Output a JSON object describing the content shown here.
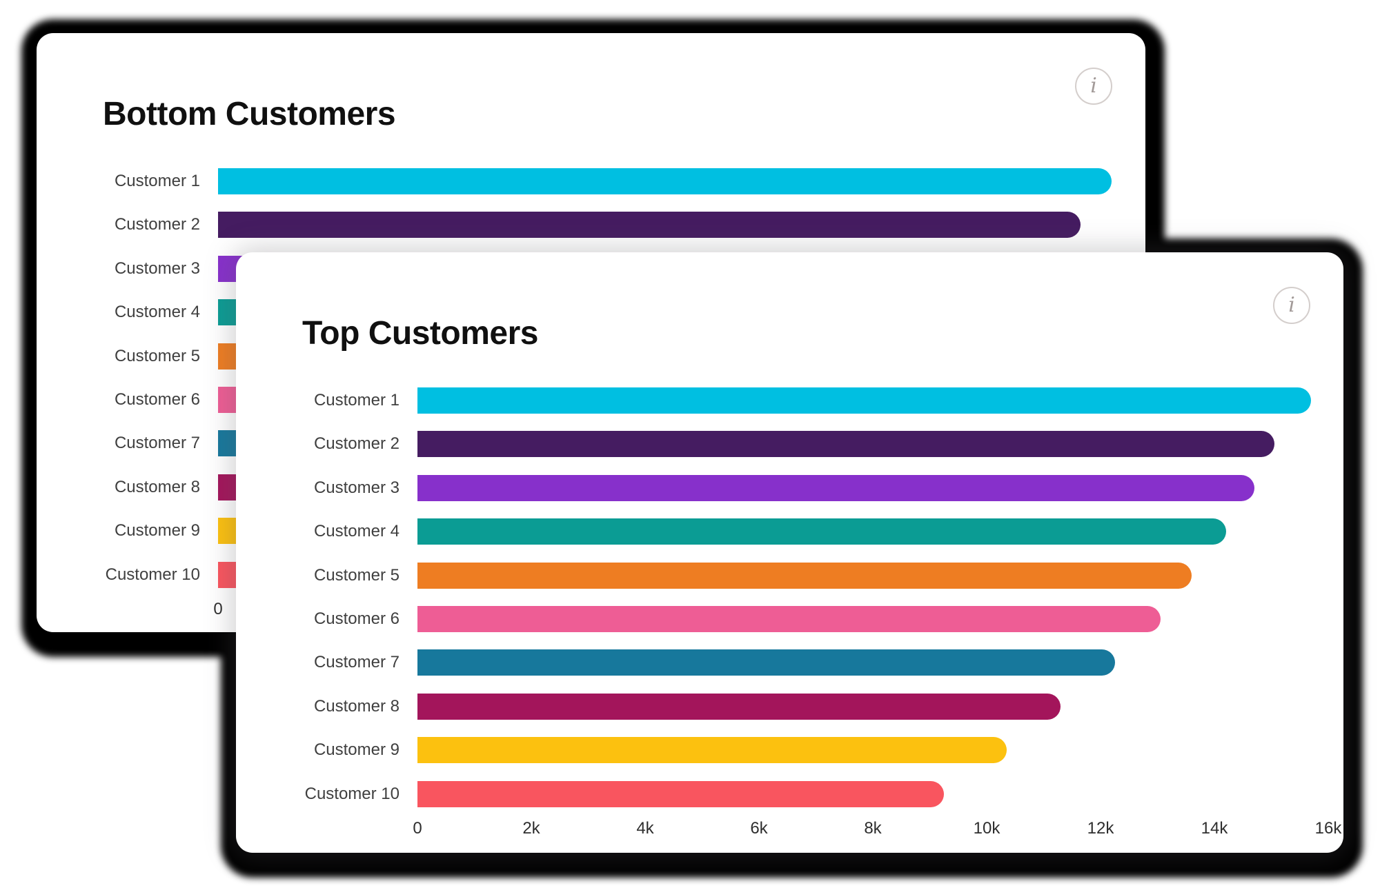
{
  "stage": {
    "background": "#FFFFFF",
    "shadow_color": "#000000"
  },
  "cards": {
    "back": {
      "title": "Bottom Customers",
      "info_icon": "i"
    },
    "front": {
      "title": "Top Customers",
      "info_icon": "i"
    }
  },
  "chart_data": [
    {
      "id": "bottom-customers",
      "type": "bar",
      "orientation": "horizontal",
      "title": "Bottom Customers",
      "categories": [
        "Customer 1",
        "Customer 2",
        "Customer 3",
        "Customer 4",
        "Customer 5",
        "Customer 6",
        "Customer 7",
        "Customer 8",
        "Customer 9",
        "Customer 10"
      ],
      "values": [
        15700,
        15150,
        14700,
        14200,
        13600,
        13050,
        12250,
        11300,
        10350,
        9250
      ],
      "bar_colors": [
        "#00BFE1",
        "#451C61",
        "#8730CB",
        "#0B9C94",
        "#EE7D22",
        "#EE5D95",
        "#17789C",
        "#A3155B",
        "#FCC10F",
        "#F9555F"
      ],
      "x_ticks": [
        "0",
        "2k",
        "4k",
        "6k",
        "8k",
        "10k",
        "12k",
        "14k",
        "16k"
      ],
      "xlim": [
        0,
        16000
      ],
      "grid": false,
      "legend": "none"
    },
    {
      "id": "top-customers",
      "type": "bar",
      "orientation": "horizontal",
      "title": "Top Customers",
      "categories": [
        "Customer 1",
        "Customer 2",
        "Customer 3",
        "Customer 4",
        "Customer 5",
        "Customer 6",
        "Customer 7",
        "Customer 8",
        "Customer 9",
        "Customer 10"
      ],
      "values": [
        15700,
        15050,
        14700,
        14200,
        13600,
        13050,
        12250,
        11300,
        10350,
        9250
      ],
      "bar_colors": [
        "#00BFE1",
        "#451C61",
        "#8730CB",
        "#0B9C94",
        "#EE7D22",
        "#EE5D95",
        "#17789C",
        "#A3155B",
        "#FCC10F",
        "#F9555F"
      ],
      "x_ticks": [
        "0",
        "2k",
        "4k",
        "6k",
        "8k",
        "10k",
        "12k",
        "14k",
        "16k"
      ],
      "xlim": [
        0,
        16000
      ],
      "grid": false,
      "legend": "none"
    }
  ]
}
